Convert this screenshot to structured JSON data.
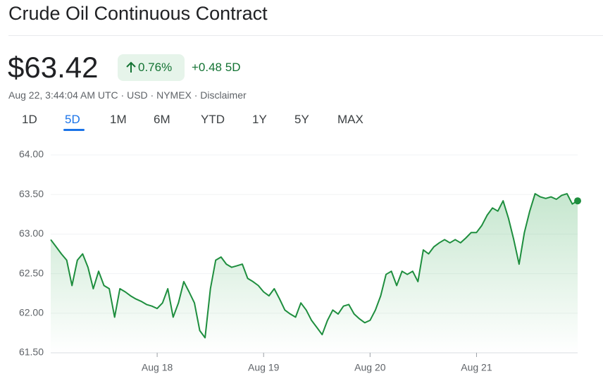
{
  "header": {
    "title": "Crude Oil Continuous Contract",
    "price": "$63.42",
    "change_percent": "0.76%",
    "change_period": "+0.48 5D",
    "meta": "Aug 22, 3:44:04 AM UTC · USD · NYMEX · Disclaimer"
  },
  "tabs": {
    "items": [
      "1D",
      "5D",
      "1M",
      "6M",
      "YTD",
      "1Y",
      "5Y",
      "MAX"
    ],
    "selected": 1
  },
  "chart_data": {
    "type": "line",
    "color": "#1e8e3e",
    "grid": true,
    "categories": [
      null,
      null,
      null,
      null,
      null,
      null,
      null,
      null,
      null,
      null,
      null,
      null,
      null,
      null,
      null,
      null,
      null,
      null,
      null,
      null,
      "Aug 18",
      null,
      null,
      null,
      null,
      null,
      null,
      null,
      null,
      null,
      null,
      null,
      null,
      null,
      null,
      null,
      null,
      null,
      null,
      null,
      "Aug 19",
      null,
      null,
      null,
      null,
      null,
      null,
      null,
      null,
      null,
      null,
      null,
      null,
      null,
      null,
      null,
      null,
      null,
      null,
      null,
      "Aug 20",
      null,
      null,
      null,
      null,
      null,
      null,
      null,
      null,
      null,
      null,
      null,
      null,
      null,
      null,
      null,
      null,
      null,
      null,
      null,
      "Aug 21",
      null,
      null,
      null,
      null,
      null,
      null,
      null,
      null,
      null,
      null,
      null,
      null,
      null,
      null,
      null,
      null,
      null,
      null,
      null
    ],
    "values": [
      62.93,
      62.84,
      62.75,
      62.67,
      62.35,
      62.67,
      62.75,
      62.58,
      62.31,
      62.53,
      62.35,
      62.31,
      61.95,
      62.31,
      62.27,
      62.22,
      62.18,
      62.15,
      62.11,
      62.09,
      62.06,
      62.13,
      62.31,
      61.95,
      62.13,
      62.4,
      62.27,
      62.13,
      61.78,
      61.69,
      62.31,
      62.67,
      62.71,
      62.62,
      62.58,
      62.6,
      62.62,
      62.44,
      62.4,
      62.35,
      62.27,
      62.22,
      62.31,
      62.18,
      62.04,
      61.99,
      61.95,
      62.13,
      62.04,
      61.91,
      61.82,
      61.73,
      61.91,
      62.04,
      61.99,
      62.09,
      62.11,
      61.99,
      61.93,
      61.88,
      61.91,
      62.04,
      62.22,
      62.49,
      62.53,
      62.35,
      62.53,
      62.49,
      62.53,
      62.4,
      62.8,
      62.75,
      62.84,
      62.89,
      62.93,
      62.89,
      62.93,
      62.89,
      62.95,
      63.02,
      63.02,
      63.11,
      63.24,
      63.33,
      63.29,
      63.42,
      63.2,
      62.93,
      62.62,
      63.02,
      63.29,
      63.51,
      63.47,
      63.45,
      63.47,
      63.44,
      63.49,
      63.51,
      63.38,
      63.42
    ],
    "ylim": [
      61.5,
      64.1
    ],
    "yticks": [
      {
        "value": 61.5,
        "label": "61.50"
      },
      {
        "value": 62,
        "label": "62.00"
      },
      {
        "value": 62.5,
        "label": "62.50"
      },
      {
        "value": 63,
        "label": "63.00"
      },
      {
        "value": 63.5,
        "label": "63.50"
      },
      {
        "value": 64,
        "label": "64.00"
      }
    ]
  }
}
